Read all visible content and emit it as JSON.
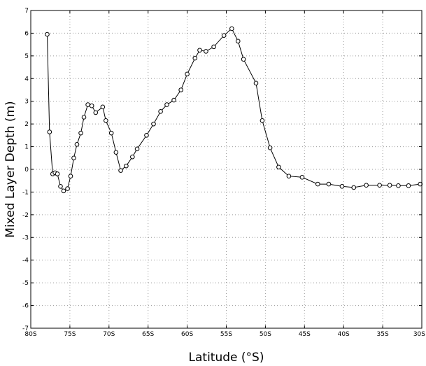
{
  "chart_data": {
    "type": "line",
    "title": "",
    "xlabel": "Latitude (°S)",
    "ylabel": "Mixed Layer Depth (m)",
    "xlim": [
      80,
      30
    ],
    "ylim": [
      -7,
      7
    ],
    "x_ticks": [
      80,
      75,
      70,
      65,
      60,
      55,
      50,
      45,
      40,
      35,
      30
    ],
    "x_tick_labels": [
      "80S",
      "75S",
      "70S",
      "65S",
      "60S",
      "55S",
      "50S",
      "45S",
      "40S",
      "35S",
      "30S"
    ],
    "y_ticks": [
      -7,
      -6,
      -5,
      -4,
      -3,
      -2,
      -1,
      0,
      1,
      2,
      3,
      4,
      5,
      6,
      7
    ],
    "y_tick_labels": [
      "-7",
      "-6",
      "-5",
      "-4",
      "-3",
      "-2",
      "-1",
      "0",
      "1",
      "2",
      "3",
      "4",
      "5",
      "6",
      "7"
    ],
    "grid": true,
    "series": [
      {
        "x": [
          77.9,
          77.6,
          77.2,
          76.9,
          76.6,
          76.2,
          75.8,
          75.3,
          74.9,
          74.5,
          74.1,
          73.6,
          73.2,
          72.7,
          72.2,
          71.7,
          70.8,
          70.4,
          69.7,
          69.1,
          68.5,
          67.8,
          67.0,
          66.4,
          65.2,
          64.3,
          63.4,
          62.6,
          61.7,
          60.8,
          60.0,
          59.0,
          58.4,
          57.6,
          56.6,
          55.3,
          54.3,
          53.5,
          52.8,
          51.2,
          50.4,
          49.4,
          48.3,
          47.0,
          45.3,
          43.3,
          41.9,
          40.2,
          38.7,
          37.1,
          35.4,
          34.1,
          33.0,
          31.7,
          30.2
        ],
        "y": [
          5.95,
          1.65,
          -0.2,
          -0.15,
          -0.2,
          -0.75,
          -0.95,
          -0.85,
          -0.3,
          0.5,
          1.1,
          1.6,
          2.3,
          2.85,
          2.8,
          2.5,
          2.75,
          2.15,
          1.6,
          0.75,
          -0.05,
          0.15,
          0.55,
          0.9,
          1.5,
          2.0,
          2.55,
          2.85,
          3.05,
          3.5,
          4.2,
          4.9,
          5.25,
          5.2,
          5.4,
          5.9,
          6.2,
          5.65,
          4.85,
          3.8,
          2.15,
          0.95,
          0.1,
          -0.3,
          -0.35,
          -0.65,
          -0.65,
          -0.75,
          -0.8,
          -0.7,
          -0.7,
          -0.7,
          -0.72,
          -0.72,
          -0.65
        ]
      }
    ]
  }
}
